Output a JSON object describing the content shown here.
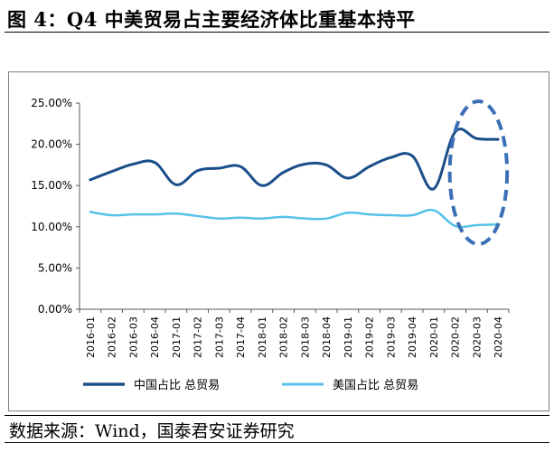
{
  "figure": {
    "title": "图 4：Q4 中美贸易占主要经济体比重基本持平",
    "source": "数据来源：Wind，国泰君安证券研究"
  },
  "chart_data": {
    "type": "line",
    "categories": [
      "2016-01",
      "2016-02",
      "2016-03",
      "2016-04",
      "2017-01",
      "2017-02",
      "2017-03",
      "2017-04",
      "2018-01",
      "2018-02",
      "2018-03",
      "2018-04",
      "2019-01",
      "2019-02",
      "2019-03",
      "2019-04",
      "2020-01",
      "2020-02",
      "2020-03",
      "2020-04"
    ],
    "series": [
      {
        "name": "中国占比 总贸易",
        "color": "#1a4e8a",
        "values": [
          15.7,
          16.7,
          17.6,
          17.8,
          15.1,
          16.8,
          17.1,
          17.3,
          15.0,
          16.6,
          17.6,
          17.5,
          15.9,
          17.3,
          18.4,
          18.6,
          14.6,
          21.5,
          20.7,
          20.6
        ]
      },
      {
        "name": "美国占比 总贸易",
        "color": "#56c1e9",
        "values": [
          11.8,
          11.4,
          11.5,
          11.5,
          11.6,
          11.3,
          11.0,
          11.1,
          11.0,
          11.2,
          11.0,
          11.0,
          11.7,
          11.5,
          11.4,
          11.4,
          12.0,
          10.1,
          10.2,
          10.3
        ]
      }
    ],
    "yticks": [
      "25.00%",
      "20.00%",
      "15.00%",
      "10.00%",
      "5.00%",
      "0.00%"
    ],
    "ylim": [
      0,
      25
    ],
    "grid": false,
    "legend": "bottom",
    "highlight": {
      "shape": "ellipse",
      "color": "#3b6fb6",
      "from_category": "2020-02",
      "to_category": "2020-04"
    }
  }
}
